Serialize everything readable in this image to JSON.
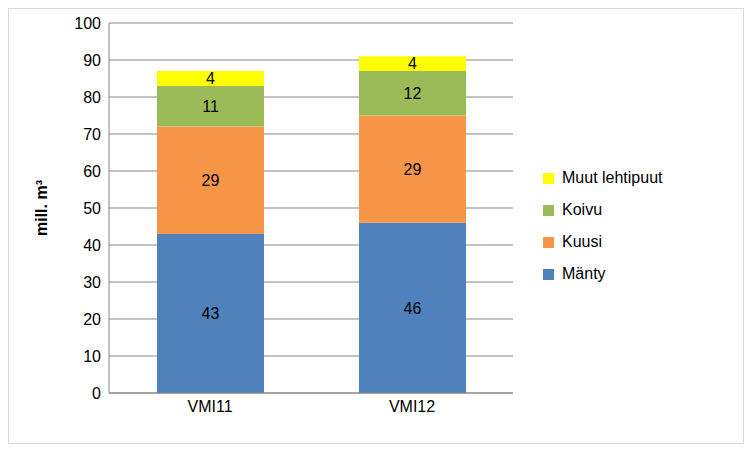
{
  "chart_data": {
    "type": "bar",
    "stacked": true,
    "data_labels": true,
    "grid": true,
    "legend": "right",
    "ylabel": "mill. m³",
    "categories": [
      "VMI11",
      "VMI12"
    ],
    "ylim": [
      0,
      100
    ],
    "yticks": [
      0,
      10,
      20,
      30,
      40,
      50,
      60,
      70,
      80,
      90,
      100
    ],
    "series": [
      {
        "name": "Mänty",
        "color": "#4f81bd",
        "values": [
          43,
          46
        ]
      },
      {
        "name": "Kuusi",
        "color": "#f79646",
        "values": [
          29,
          29
        ]
      },
      {
        "name": "Koivu",
        "color": "#9bbb59",
        "values": [
          11,
          12
        ]
      },
      {
        "name": "Muut lehtipuut",
        "color": "#ffff00",
        "values": [
          4,
          4
        ]
      }
    ]
  }
}
